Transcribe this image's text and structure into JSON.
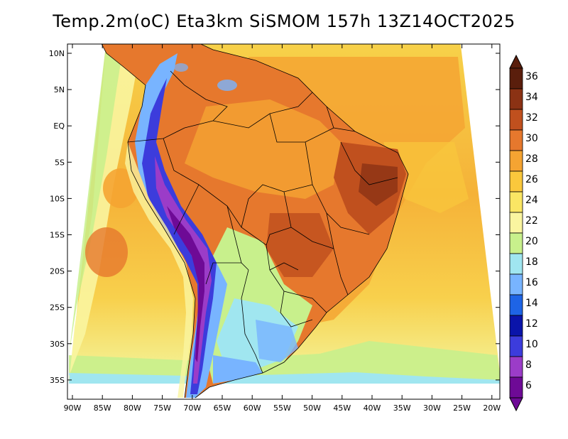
{
  "title": "Temp.2m(oC) Eta3km SiSMOM 157h 13Z14OCT2025",
  "map": {
    "lat_ticks": [
      "10N",
      "5N",
      "EQ",
      "5S",
      "10S",
      "15S",
      "20S",
      "25S",
      "30S",
      "35S"
    ],
    "lon_ticks": [
      "90W",
      "85W",
      "80W",
      "75W",
      "70W",
      "65W",
      "60W",
      "55W",
      "50W",
      "45W",
      "40W",
      "35W",
      "30W",
      "25W",
      "20W"
    ]
  },
  "colorbar": {
    "labels": [
      "36",
      "34",
      "32",
      "30",
      "28",
      "26",
      "24",
      "22",
      "20",
      "18",
      "16",
      "14",
      "12",
      "10",
      "8",
      "6"
    ],
    "colors": [
      "#5a1e0c",
      "#8b3214",
      "#c0501e",
      "#e6782d",
      "#f5a432",
      "#fac83c",
      "#fae664",
      "#faf5a0",
      "#c8f08c",
      "#a0e6f0",
      "#78b4ff",
      "#1e64e6",
      "#0a14aa",
      "#3c3cdc",
      "#9b3cc8",
      "#6e0a96"
    ],
    "top_color": "#5a1e0c",
    "bottom_color": "#6e0a96"
  }
}
